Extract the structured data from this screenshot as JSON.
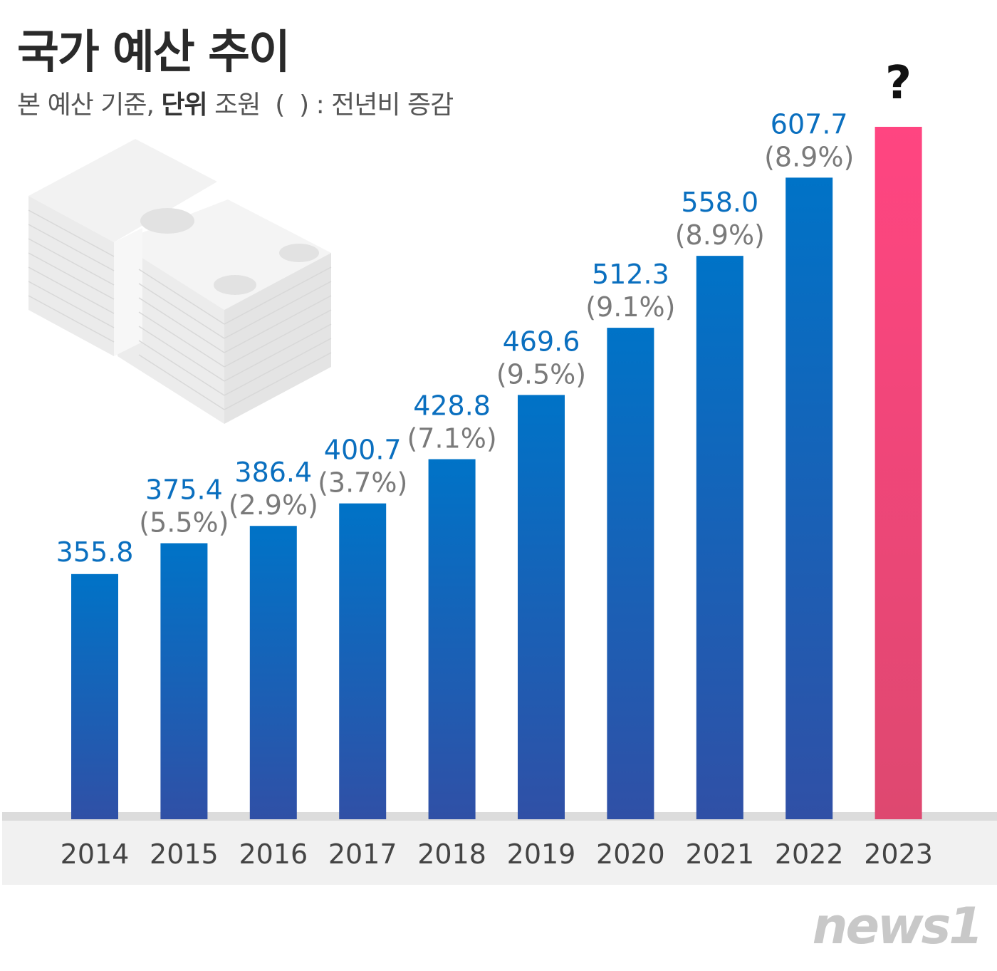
{
  "header": {
    "title": "국가 예산 추이",
    "subtitle_prefix": "본 예산 기준, ",
    "subtitle_unit_label": "단위",
    "subtitle_suffix": " 조원  (  ) : 전년비 증감"
  },
  "logo": "news1",
  "chart_data": {
    "type": "bar",
    "title": "국가 예산 추이",
    "categories": [
      "2014",
      "2015",
      "2016",
      "2017",
      "2018",
      "2019",
      "2020",
      "2021",
      "2022",
      "2023"
    ],
    "values": [
      355.8,
      375.4,
      386.4,
      400.7,
      428.8,
      469.6,
      512.3,
      558.0,
      607.7,
      null
    ],
    "value_labels": [
      "355.8",
      "375.4",
      "386.4",
      "400.7",
      "428.8",
      "469.6",
      "512.3",
      "558.0",
      "607.7",
      "?"
    ],
    "change_labels": [
      "",
      "(5.5%)",
      "(2.9%)",
      "(3.7%)",
      "(7.1%)",
      "(9.5%)",
      "(9.1%)",
      "(8.9%)",
      "(8.9%)",
      ""
    ],
    "ylim": [
      200,
      640
    ],
    "grid": false,
    "colors": {
      "bar_top": "#0073c7",
      "bar_bottom": "#3050a6",
      "highlight_top": "#ff4581",
      "highlight_bottom": "#de4870",
      "value_text": "#0a6fbf",
      "change_text": "#7a7a7a"
    }
  }
}
